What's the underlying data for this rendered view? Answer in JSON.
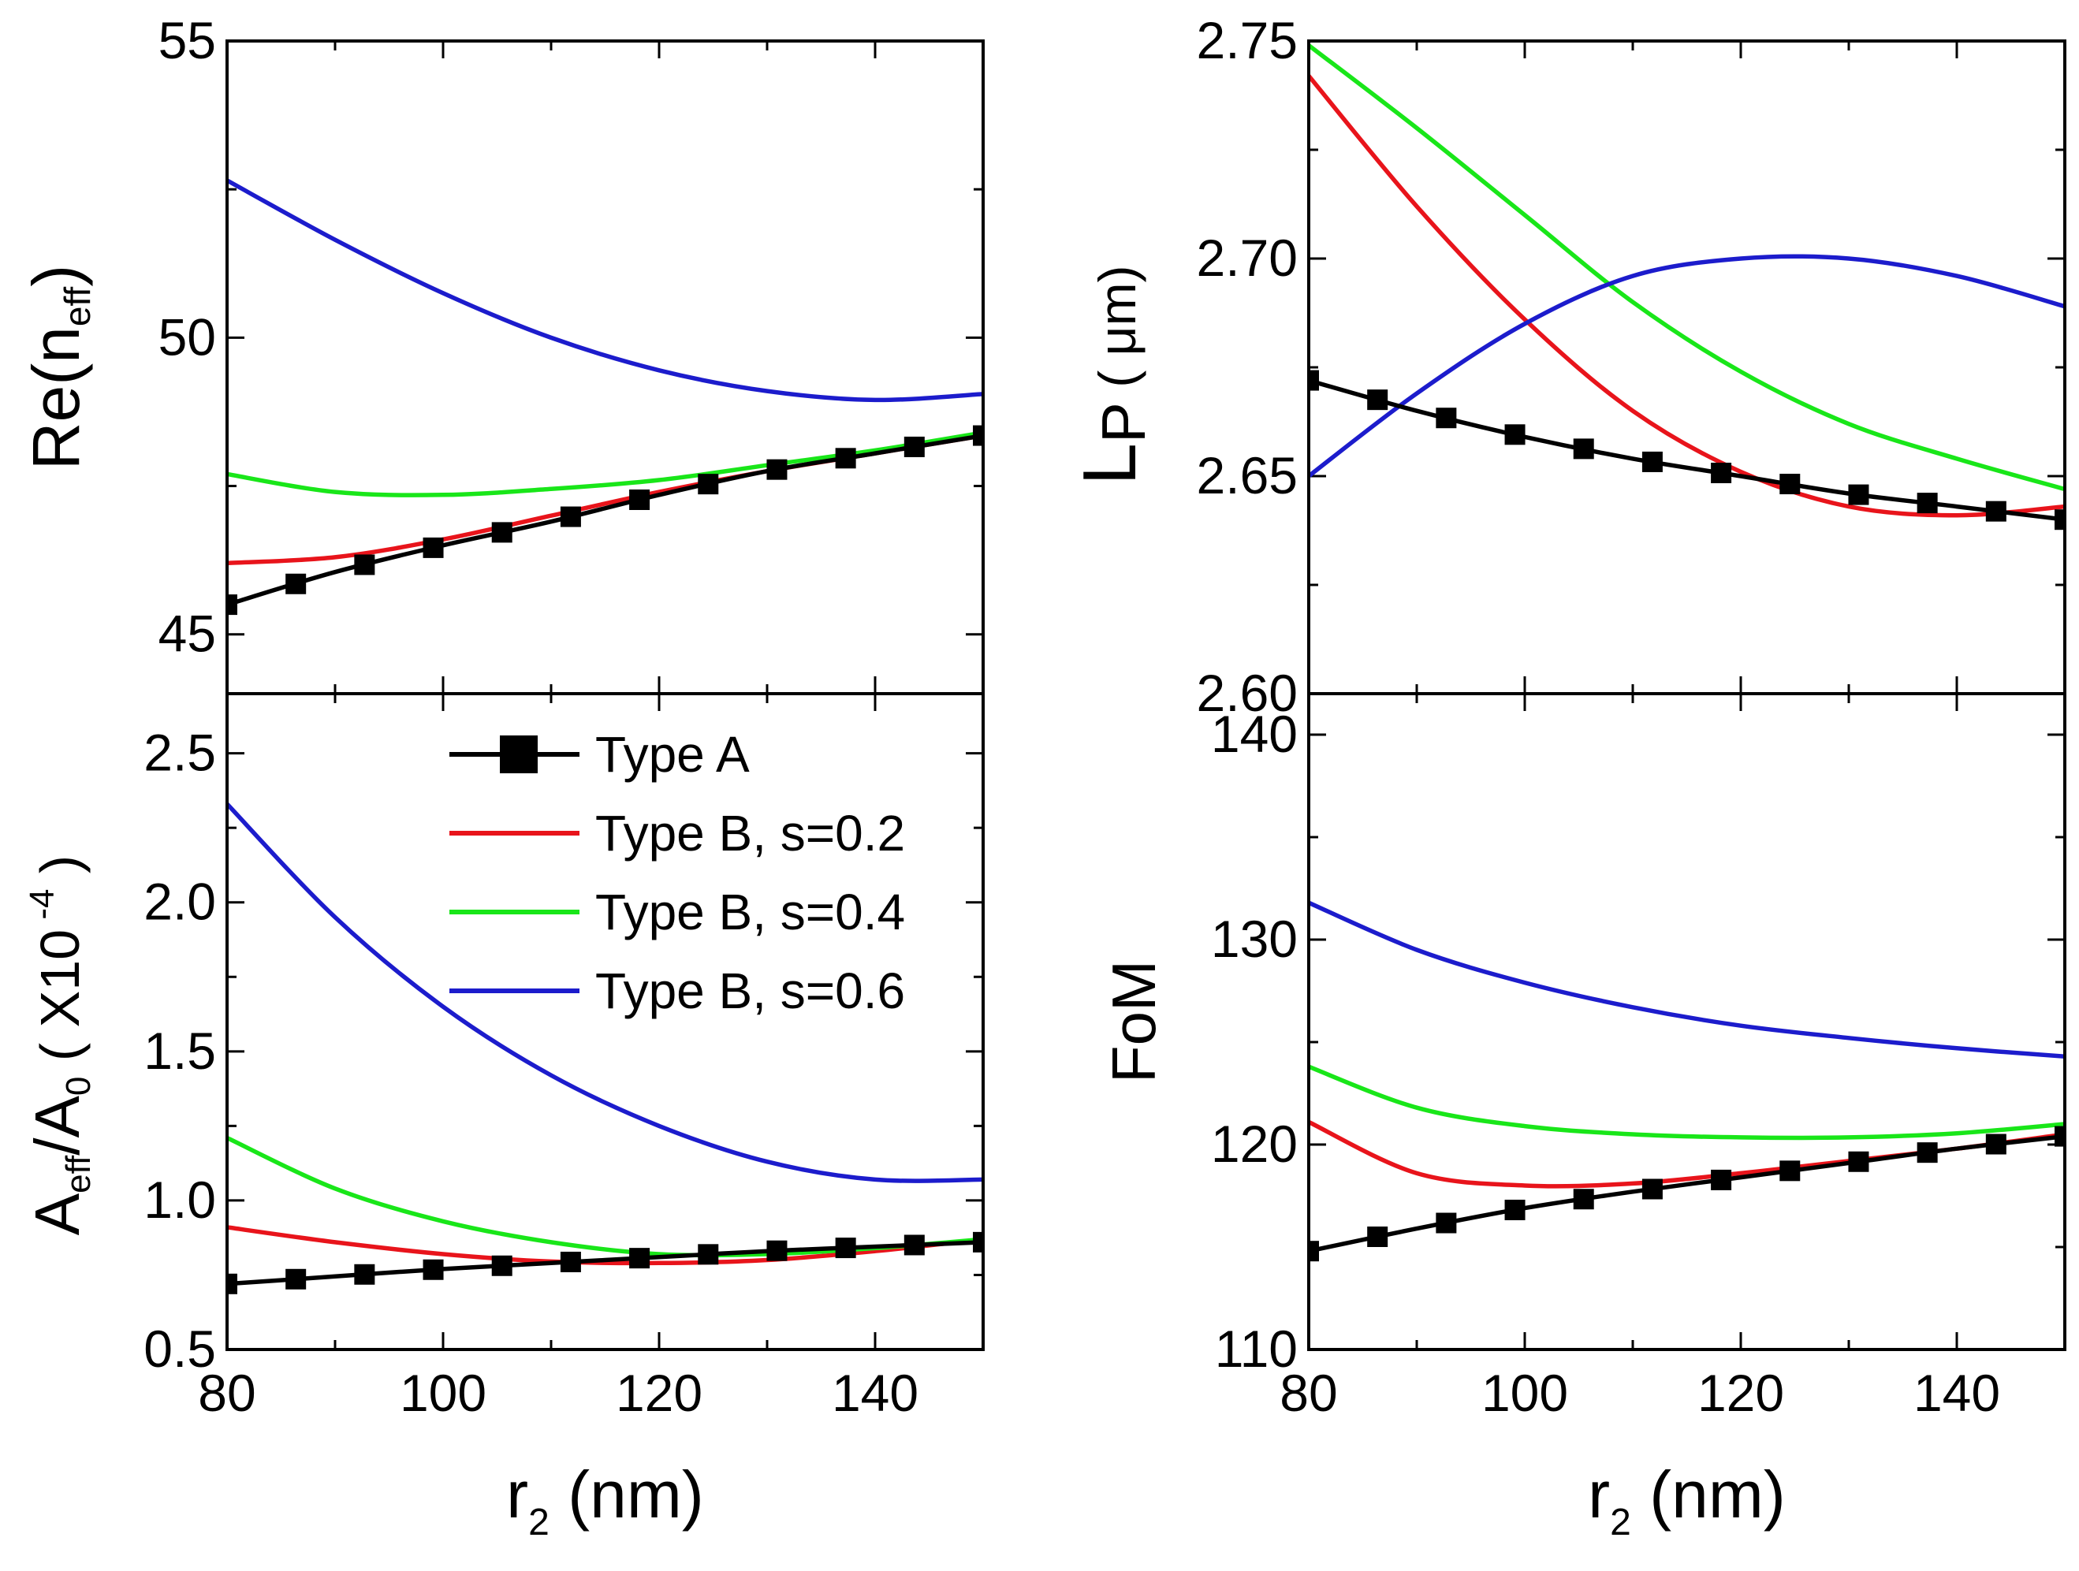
{
  "chart_data": [
    {
      "id": "neff",
      "type": "line",
      "ylabel": {
        "main": "Re(n",
        "sub": "eff",
        "close": ")"
      },
      "xlim": [
        80,
        150
      ],
      "ylim": [
        44,
        55
      ],
      "yticks": [
        45,
        50,
        55
      ],
      "yminor": [
        47.5,
        52.5
      ],
      "series": [
        {
          "name": "Type A",
          "color": "#000000",
          "markers": true,
          "x": [
            80,
            90,
            100,
            110,
            120,
            130,
            140,
            150
          ],
          "y": [
            45.5,
            46.05,
            46.5,
            46.9,
            47.35,
            47.75,
            48.05,
            48.35
          ]
        },
        {
          "name": "Type B, s=0.2",
          "color": "#e8141b",
          "x": [
            80,
            90,
            100,
            110,
            120,
            130,
            140,
            150
          ],
          "y": [
            46.2,
            46.3,
            46.6,
            47.0,
            47.4,
            47.75,
            48.05,
            48.35
          ]
        },
        {
          "name": "Type B, s=0.4",
          "color": "#19e619",
          "x": [
            80,
            90,
            100,
            110,
            120,
            130,
            140,
            150
          ],
          "y": [
            47.7,
            47.4,
            47.35,
            47.45,
            47.6,
            47.85,
            48.1,
            48.4
          ]
        },
        {
          "name": "Type B, s=0.6",
          "color": "#1c1ccc",
          "x": [
            80,
            90,
            100,
            110,
            120,
            130,
            140,
            150
          ],
          "y": [
            52.65,
            51.65,
            50.75,
            50.0,
            49.45,
            49.1,
            48.95,
            49.05
          ]
        }
      ]
    },
    {
      "id": "lp",
      "type": "line",
      "ylabel": {
        "main": "L",
        "sub": "P",
        "close": " ( μm)"
      },
      "xlim": [
        80,
        150
      ],
      "ylim": [
        2.6,
        2.75
      ],
      "yticks": [
        2.6,
        2.65,
        2.7,
        2.75
      ],
      "yminor": [
        2.625,
        2.675,
        2.725
      ],
      "series": [
        {
          "name": "Type A",
          "color": "#000000",
          "markers": true,
          "x": [
            80,
            90,
            100,
            110,
            120,
            130,
            140,
            150
          ],
          "y": [
            2.672,
            2.665,
            2.659,
            2.654,
            2.65,
            2.646,
            2.643,
            2.64
          ]
        },
        {
          "name": "Type B, s=0.2",
          "color": "#e8141b",
          "x": [
            80,
            90,
            100,
            110,
            120,
            130,
            140,
            150
          ],
          "y": [
            2.742,
            2.712,
            2.686,
            2.665,
            2.651,
            2.643,
            2.641,
            2.643
          ]
        },
        {
          "name": "Type B, s=0.4",
          "color": "#19e619",
          "x": [
            80,
            90,
            100,
            110,
            120,
            130,
            140,
            150
          ],
          "y": [
            2.749,
            2.73,
            2.71,
            2.69,
            2.674,
            2.662,
            2.654,
            2.647
          ]
        },
        {
          "name": "Type B, s=0.6",
          "color": "#1c1ccc",
          "x": [
            80,
            90,
            100,
            110,
            120,
            130,
            140,
            150
          ],
          "y": [
            2.65,
            2.669,
            2.685,
            2.696,
            2.7,
            2.7,
            2.696,
            2.689
          ]
        }
      ]
    },
    {
      "id": "aeff",
      "type": "line",
      "ylabel": {
        "main": "A",
        "sub": "eff",
        "mid": "/A",
        "sub2": "0",
        "paren": "( X10",
        "sup": "-4",
        "close": ")"
      },
      "xlim": [
        80,
        150
      ],
      "ylim": [
        0.5,
        2.7
      ],
      "yticks": [
        0.5,
        1.0,
        1.5,
        2.0,
        2.5
      ],
      "yminor": [
        0.75,
        1.25,
        1.75,
        2.25
      ],
      "series": [
        {
          "name": "Type A",
          "color": "#000000",
          "markers": true,
          "x": [
            80,
            90,
            100,
            110,
            120,
            130,
            140,
            150
          ],
          "y": [
            0.72,
            0.745,
            0.77,
            0.79,
            0.81,
            0.83,
            0.845,
            0.86
          ]
        },
        {
          "name": "Type B, s=0.2",
          "color": "#e8141b",
          "x": [
            80,
            90,
            100,
            110,
            120,
            130,
            140,
            150
          ],
          "y": [
            0.91,
            0.86,
            0.82,
            0.795,
            0.79,
            0.8,
            0.83,
            0.87
          ]
        },
        {
          "name": "Type B, s=0.4",
          "color": "#19e619",
          "x": [
            80,
            90,
            100,
            110,
            120,
            130,
            140,
            150
          ],
          "y": [
            1.21,
            1.04,
            0.93,
            0.86,
            0.82,
            0.82,
            0.84,
            0.87
          ]
        },
        {
          "name": "Type B, s=0.6",
          "color": "#1c1ccc",
          "x": [
            80,
            90,
            100,
            110,
            120,
            130,
            140,
            150
          ],
          "y": [
            2.33,
            1.95,
            1.65,
            1.42,
            1.25,
            1.13,
            1.07,
            1.07
          ]
        }
      ]
    },
    {
      "id": "fom",
      "type": "line",
      "ylabel": {
        "main": "FoM"
      },
      "xlim": [
        80,
        150
      ],
      "ylim": [
        110,
        142
      ],
      "yticks": [
        110,
        120,
        130,
        140
      ],
      "yminor": [
        115,
        125,
        135
      ],
      "series": [
        {
          "name": "Type A",
          "color": "#000000",
          "markers": true,
          "x": [
            80,
            90,
            100,
            110,
            120,
            130,
            140,
            150
          ],
          "y": [
            114.8,
            115.9,
            116.9,
            117.7,
            118.4,
            119.1,
            119.8,
            120.4
          ]
        },
        {
          "name": "Type B, s=0.2",
          "color": "#e8141b",
          "x": [
            80,
            90,
            100,
            110,
            120,
            130,
            140,
            150
          ],
          "y": [
            121.1,
            118.6,
            118.0,
            118.1,
            118.6,
            119.2,
            119.8,
            120.5
          ]
        },
        {
          "name": "Type B, s=0.4",
          "color": "#19e619",
          "x": [
            80,
            90,
            100,
            110,
            120,
            130,
            140,
            150
          ],
          "y": [
            123.8,
            121.8,
            120.9,
            120.5,
            120.35,
            120.35,
            120.55,
            121.0
          ]
        },
        {
          "name": "Type B, s=0.6",
          "color": "#1c1ccc",
          "x": [
            80,
            90,
            100,
            110,
            120,
            130,
            140,
            150
          ],
          "y": [
            131.8,
            129.5,
            127.9,
            126.7,
            125.8,
            125.2,
            124.7,
            124.3
          ]
        }
      ]
    }
  ],
  "x_axis": {
    "ticks": [
      80,
      100,
      120,
      140
    ],
    "minor": [
      90,
      110,
      130,
      150
    ],
    "label_main": "r",
    "label_sub": "2",
    "label_rest": " (nm)"
  },
  "legend": [
    {
      "label": "Type A",
      "color": "#000000",
      "marker": true
    },
    {
      "label": "Type B, s=0.2",
      "color": "#e8141b",
      "marker": false
    },
    {
      "label": "Type B, s=0.4",
      "color": "#19e619",
      "marker": false
    },
    {
      "label": "Type B, s=0.6",
      "color": "#1c1ccc",
      "marker": false
    }
  ]
}
